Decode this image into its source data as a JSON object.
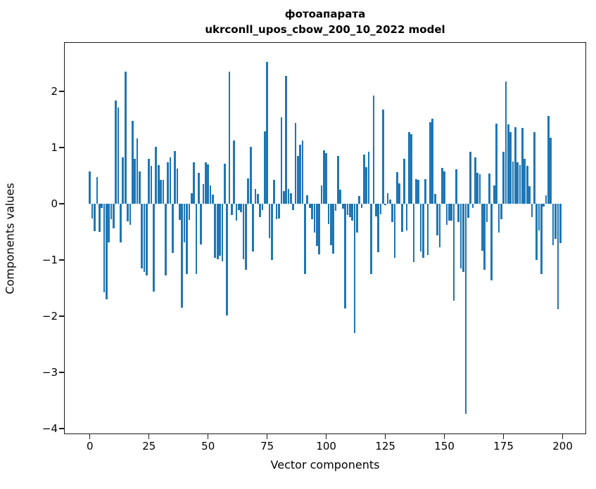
{
  "figure": {
    "title_line1": "фотоапарата",
    "title_line2": "ukrconll_upos_cbow_200_10_2022 model",
    "background_color": "#ffffff",
    "bar_color": "#1f77b4",
    "axis_color": "#1a1a1a"
  },
  "chart_data": {
    "type": "bar",
    "title": "фотоапарата\nukrconll_upos_cbow_200_10_2022 model",
    "xlabel": "Vector components",
    "ylabel": "Components values",
    "x_start_index": 0,
    "n_components": 200,
    "xlim": [
      -10.95,
      209.95
    ],
    "ylim": [
      -4.1,
      2.875
    ],
    "x_tick_values": [
      0,
      25,
      50,
      75,
      100,
      125,
      150,
      175,
      200
    ],
    "x_tick_labels": [
      "0",
      "25",
      "50",
      "75",
      "100",
      "125",
      "150",
      "175",
      "200"
    ],
    "y_tick_values": [
      2,
      1,
      0,
      -1,
      -2,
      -3,
      -4
    ],
    "y_tick_labels": [
      "2",
      "1",
      "0",
      "−1",
      "−2",
      "−3",
      "−4"
    ],
    "grid": false,
    "legend": null,
    "values": [
      0.58,
      -0.26,
      -0.49,
      0.48,
      -0.5,
      -0.08,
      -1.57,
      -1.7,
      -0.69,
      -0.28,
      -0.44,
      1.84,
      1.71,
      -0.69,
      0.82,
      2.35,
      -0.31,
      -0.38,
      1.48,
      0.8,
      1.16,
      0.58,
      -1.15,
      -1.21,
      -1.27,
      0.8,
      0.68,
      -1.56,
      1.01,
      0.69,
      0.43,
      0.42,
      -1.27,
      0.74,
      0.83,
      -0.87,
      0.94,
      0.63,
      -0.29,
      -1.85,
      -0.69,
      -1.25,
      -0.29,
      0.19,
      0.74,
      -1.25,
      0.55,
      -0.73,
      0.35,
      0.74,
      0.7,
      0.33,
      0.16,
      -0.96,
      -0.99,
      -0.92,
      -1.02,
      0.71,
      -1.99,
      2.35,
      -0.2,
      1.13,
      -0.3,
      -0.11,
      -0.15,
      -0.99,
      -1.17,
      0.45,
      1.01,
      -0.85,
      0.26,
      0.18,
      -0.24,
      -0.11,
      1.29,
      2.52,
      -0.61,
      -1.0,
      0.43,
      -0.28,
      -0.26,
      1.54,
      0.22,
      2.28,
      0.26,
      0.19,
      -0.11,
      1.44,
      0.85,
      1.05,
      1.12,
      -1.25,
      0.15,
      -0.07,
      -0.27,
      -0.51,
      -0.75,
      -0.9,
      0.33,
      0.95,
      0.9,
      -0.36,
      -0.74,
      -0.89,
      -0.12,
      0.85,
      0.25,
      -0.09,
      -1.86,
      -0.2,
      -0.24,
      -0.3,
      -2.3,
      -0.51,
      0.14,
      -0.08,
      0.88,
      0.65,
      0.93,
      -1.25,
      1.93,
      -0.23,
      -0.86,
      -0.19,
      1.68,
      -0.03,
      0.19,
      0.08,
      -0.33,
      -0.96,
      0.56,
      0.36,
      -0.5,
      0.8,
      -0.47,
      1.27,
      1.24,
      -1.04,
      0.44,
      0.42,
      -0.85,
      -0.96,
      0.44,
      -0.91,
      1.45,
      1.51,
      0.18,
      -0.56,
      -0.78,
      0.64,
      0.57,
      -0.38,
      -0.3,
      -0.3,
      -1.73,
      0.61,
      -0.33,
      -1.15,
      -1.21,
      -3.74,
      -0.25,
      0.93,
      -0.08,
      0.82,
      0.55,
      0.53,
      -0.84,
      -1.18,
      -0.32,
      0.54,
      -1.36,
      0.33,
      1.42,
      -0.51,
      -0.28,
      0.92,
      2.18,
      1.41,
      1.28,
      0.75,
      1.36,
      0.74,
      0.69,
      1.35,
      0.8,
      0.67,
      0.31,
      -0.24,
      1.28,
      -1.0,
      -0.47,
      -1.25,
      -0.05,
      0.15,
      1.56,
      1.18,
      -0.74,
      -0.63,
      -1.88,
      -0.7
    ]
  }
}
